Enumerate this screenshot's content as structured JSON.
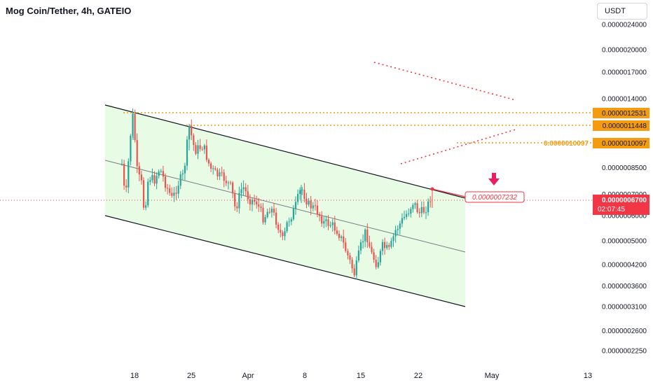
{
  "header": {
    "title": "Mog Coin/Tether, 4h, GATEIO",
    "currency": "USDT"
  },
  "colors": {
    "up": "#26a69a",
    "down": "#ef5350",
    "channel_fill": "#e8fbe4",
    "orange": "#f39c12",
    "price_red": "#f23645",
    "dotted_red": "#f23645"
  },
  "price_axis": {
    "tick_labels": [
      "0.0000024000",
      "0.0000020000",
      "0.0000017000",
      "0.0000014000",
      "0.0000008500",
      "0.0000007000",
      "0.0000006000",
      "0.0000005000",
      "0.0000004200",
      "0.0000003600",
      "0.0000003100",
      "0.0000002600",
      "0.0000002250"
    ],
    "tags": {
      "level_1": "0.0000012531",
      "level_2": "0.0000011448",
      "level_3": "0.0000010097",
      "current_price": "0.0000006700",
      "countdown": "02:07:45"
    }
  },
  "time_axis": {
    "labels": [
      "18",
      "25",
      "Apr",
      "8",
      "15",
      "22",
      "May",
      "13"
    ]
  },
  "annotations": {
    "level_3_label": "0.0000010097",
    "target_label": "0.0000007232"
  },
  "chart_data": {
    "type": "candlestick",
    "title": "Mog Coin/Tether, 4h, GATEIO",
    "y_scale": "log",
    "xlabel": "",
    "ylabel": "",
    "x_tick_labels": [
      "18",
      "25",
      "Apr",
      "8",
      "15",
      "22",
      "May",
      "13"
    ],
    "y_tick_labels": [
      "0.0000024000",
      "0.0000020000",
      "0.0000017000",
      "0.0000014000",
      "0.0000008500",
      "0.0000007000",
      "0.0000006000",
      "0.0000005000",
      "0.0000004200",
      "0.0000003600",
      "0.0000003100",
      "0.0000002600",
      "0.0000002250"
    ],
    "horizontal_levels": [
      1.2531e-06,
      1.1448e-06,
      1.0097e-06
    ],
    "current_price": 6.7e-07,
    "target_price": 7.232e-07,
    "close_trend": [
      7.5e-07,
      9e-07,
      1.15e-06,
      9.2e-07,
      7.2e-07,
      7e-07,
      8e-07,
      7.5e-07,
      6.8e-07,
      7e-07,
      7.2e-07,
      1.1e-06,
      9.5e-07,
      8.5e-07,
      7.8e-07,
      7.2e-07,
      7e-07,
      6e-07,
      6.5e-07,
      6.3e-07,
      6.5e-07,
      5.5e-07,
      6e-07,
      5.7e-07,
      6e-07,
      6.8e-07,
      6.4e-07,
      6e-07,
      5.7e-07,
      5.9e-07,
      5e-07,
      4.7e-07,
      4.2e-07,
      4.6e-07,
      4.1e-07,
      4.4e-07,
      5e-07,
      5.8e-07,
      6.3e-07,
      6.1e-07
    ]
  }
}
